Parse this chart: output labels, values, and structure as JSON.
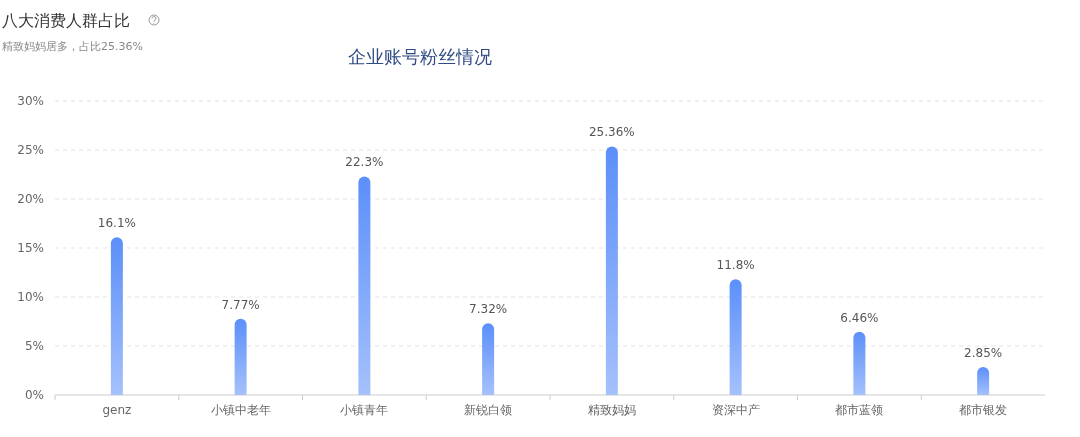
{
  "chart_data": {
    "type": "bar",
    "title": "八大消费人群占比",
    "subtitle": "精致妈妈居多，占比25.36%",
    "annotations": [
      "企业账号粉丝情况"
    ],
    "categories": [
      "genz",
      "小镇中老年",
      "小镇青年",
      "新锐白领",
      "精致妈妈",
      "资深中产",
      "都市蓝领",
      "都市银发"
    ],
    "values": [
      16.1,
      7.77,
      22.3,
      7.32,
      25.36,
      11.8,
      6.46,
      2.85
    ],
    "value_labels": [
      "16.1%",
      "7.77%",
      "22.3%",
      "7.32%",
      "25.36%",
      "11.8%",
      "6.46%",
      "2.85%"
    ],
    "color": "#5b8ff9",
    "ylim": [
      0,
      30
    ],
    "yticks": [
      {
        "value": 0,
        "label": "0%"
      },
      {
        "value": 5,
        "label": "5%"
      },
      {
        "value": 10,
        "label": "10%"
      },
      {
        "value": 15,
        "label": "15%"
      },
      {
        "value": 20,
        "label": "20%"
      },
      {
        "value": 25,
        "label": "25%"
      },
      {
        "value": 30,
        "label": "30%"
      }
    ],
    "grid": "y"
  }
}
